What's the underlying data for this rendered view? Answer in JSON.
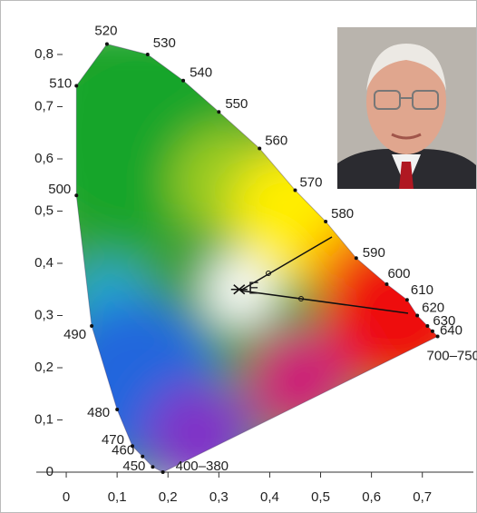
{
  "chart_data": {
    "type": "scatter",
    "x": [
      0.19,
      0.17,
      0.15,
      0.13,
      0.1,
      0.05,
      0.02,
      0.02,
      0.08,
      0.16,
      0.23,
      0.3,
      0.38,
      0.45,
      0.51,
      0.57,
      0.63,
      0.67,
      0.69,
      0.71,
      0.72,
      0.73
    ],
    "values": [
      0.0,
      0.01,
      0.03,
      0.05,
      0.12,
      0.28,
      0.53,
      0.74,
      0.82,
      0.8,
      0.75,
      0.69,
      0.62,
      0.54,
      0.48,
      0.41,
      0.36,
      0.33,
      0.3,
      0.28,
      0.27,
      0.26
    ],
    "labels": [
      "400–380",
      "450",
      "460",
      "470",
      "480",
      "490",
      "500",
      "510",
      "520",
      "530",
      "540",
      "550",
      "560",
      "570",
      "580",
      "590",
      "600",
      "610",
      "620",
      "630",
      "640",
      "700–750"
    ],
    "annotation": {
      "label": "E",
      "x": 0.34,
      "y": 0.35
    },
    "xlim": [
      -0.05,
      0.78
    ],
    "ylim": [
      0,
      0.86
    ],
    "xticks": [
      0,
      {
        "value": 0.1,
        "label": "0,1"
      },
      {
        "value": 0.2,
        "label": "0,2"
      },
      {
        "value": 0.3,
        "label": "0,3"
      },
      {
        "value": 0.4,
        "label": "0,4"
      },
      {
        "value": 0.5,
        "label": "0,5"
      },
      {
        "value": 0.6,
        "label": "0,6"
      },
      {
        "value": 0.7,
        "label": "0,7"
      }
    ],
    "yticks": [
      0,
      {
        "value": 0.1,
        "label": "0,1"
      },
      {
        "value": 0.2,
        "label": "0,2"
      },
      {
        "value": 0.3,
        "label": "0,3"
      },
      {
        "value": 0.4,
        "label": "0,4"
      },
      {
        "value": 0.5,
        "label": "0,5"
      },
      {
        "value": 0.6,
        "label": "0,6"
      },
      {
        "value": 0.7,
        "label": "0,7"
      },
      {
        "value": 0.8,
        "label": "0,8"
      }
    ]
  }
}
